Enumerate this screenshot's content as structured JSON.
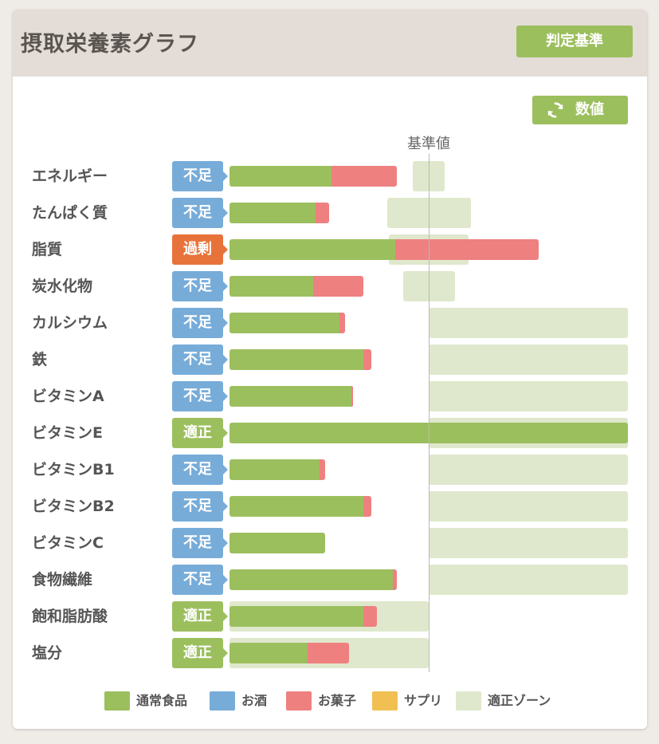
{
  "header": {
    "title": "摂取栄養素グラフ",
    "criteria_button": "判定基準"
  },
  "toolbar": {
    "value_button": "数値"
  },
  "colors": {
    "food": "#9cbf5e",
    "alcohol": "#77acd9",
    "snack": "#ee8080",
    "supplement": "#f2c052",
    "zone": "#dfe8cc",
    "status_low": "#77acd9",
    "status_high": "#e8733a",
    "status_ok": "#9cbf5e"
  },
  "chart_data": {
    "type": "bar",
    "title": "摂取栄養素グラフ",
    "orientation": "horizontal",
    "reference_label": "基準値",
    "xlim": [
      0,
      200
    ],
    "reference_value": 100,
    "series_names": [
      "通常食品",
      "お酒",
      "お菓子",
      "サプリ"
    ],
    "rows": [
      {
        "name": "エネルギー",
        "status": "不足",
        "status_type": "low",
        "food": 51,
        "alcohol": 0,
        "snack": 33,
        "supplement": 0,
        "zone": [
          92,
          108
        ]
      },
      {
        "name": "たんぱく質",
        "status": "不足",
        "status_type": "low",
        "food": 43,
        "alcohol": 0,
        "snack": 7,
        "supplement": 0,
        "zone": [
          79,
          121
        ]
      },
      {
        "name": "脂質",
        "status": "過剰",
        "status_type": "high",
        "food": 83,
        "alcohol": 0,
        "snack": 72,
        "supplement": 0,
        "zone": [
          80,
          120
        ]
      },
      {
        "name": "炭水化物",
        "status": "不足",
        "status_type": "low",
        "food": 42,
        "alcohol": 0,
        "snack": 25,
        "supplement": 0,
        "zone": [
          87,
          113
        ]
      },
      {
        "name": "カルシウム",
        "status": "不足",
        "status_type": "low",
        "food": 55,
        "alcohol": 0,
        "snack": 3,
        "supplement": 0,
        "zone": [
          100,
          200
        ]
      },
      {
        "name": "鉄",
        "status": "不足",
        "status_type": "low",
        "food": 67,
        "alcohol": 0,
        "snack": 4,
        "supplement": 0,
        "zone": [
          100,
          200
        ]
      },
      {
        "name": "ビタミンA",
        "status": "不足",
        "status_type": "low",
        "food": 61,
        "alcohol": 0,
        "snack": 1,
        "supplement": 0,
        "zone": [
          100,
          200
        ]
      },
      {
        "name": "ビタミンE",
        "status": "適正",
        "status_type": "ok",
        "food": 200,
        "alcohol": 0,
        "snack": 0,
        "supplement": 0,
        "zone": [
          100,
          200
        ]
      },
      {
        "name": "ビタミンB1",
        "status": "不足",
        "status_type": "low",
        "food": 45,
        "alcohol": 0,
        "snack": 3,
        "supplement": 0,
        "zone": [
          100,
          200
        ]
      },
      {
        "name": "ビタミンB2",
        "status": "不足",
        "status_type": "low",
        "food": 67,
        "alcohol": 0,
        "snack": 4,
        "supplement": 0,
        "zone": [
          100,
          200
        ]
      },
      {
        "name": "ビタミンC",
        "status": "不足",
        "status_type": "low",
        "food": 48,
        "alcohol": 0,
        "snack": 0,
        "supplement": 0,
        "zone": [
          100,
          200
        ]
      },
      {
        "name": "食物繊維",
        "status": "不足",
        "status_type": "low",
        "food": 82,
        "alcohol": 0,
        "snack": 2,
        "supplement": 0,
        "zone": [
          100,
          200
        ]
      },
      {
        "name": "飽和脂肪酸",
        "status": "適正",
        "status_type": "ok",
        "food": 67,
        "alcohol": 0,
        "snack": 7,
        "supplement": 0,
        "zone": [
          0,
          100
        ]
      },
      {
        "name": "塩分",
        "status": "適正",
        "status_type": "ok",
        "food": 39,
        "alcohol": 0,
        "snack": 21,
        "supplement": 0,
        "zone": [
          0,
          100
        ]
      }
    ]
  },
  "legend": [
    {
      "label": "通常食品",
      "color": "#9cbf5e"
    },
    {
      "label": "お酒",
      "color": "#77acd9"
    },
    {
      "label": "お菓子",
      "color": "#ee8080"
    },
    {
      "label": "サプリ",
      "color": "#f2c052"
    },
    {
      "label": "適正ゾーン",
      "color": "#dfe8cc"
    }
  ]
}
